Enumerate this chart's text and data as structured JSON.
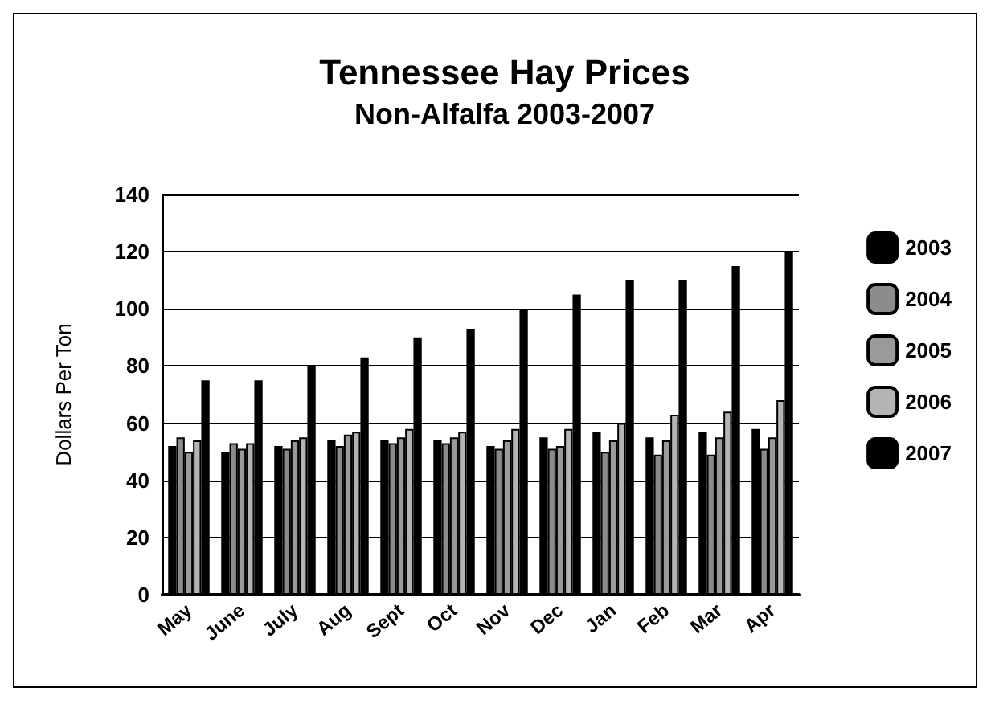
{
  "chart_data": {
    "type": "bar",
    "title": "Tennessee Hay Prices",
    "subtitle": "Non-Alfalfa 2003-2007",
    "ylabel": "Dollars Per Ton",
    "categories": [
      "May",
      "June",
      "July",
      "Aug",
      "Sept",
      "Oct",
      "Nov",
      "Dec",
      "Jan",
      "Feb",
      "Mar",
      "Apr"
    ],
    "series": [
      {
        "name": "2003",
        "color": "#000000",
        "values": [
          52,
          50,
          52,
          54,
          54,
          54,
          52,
          55,
          57,
          55,
          57,
          58
        ]
      },
      {
        "name": "2004",
        "color": "#8c8c8c",
        "values": [
          55,
          53,
          51,
          52,
          53,
          53,
          51,
          51,
          50,
          49,
          49,
          51
        ]
      },
      {
        "name": "2005",
        "color": "#9a9a9a",
        "values": [
          50,
          51,
          54,
          56,
          55,
          55,
          54,
          52,
          54,
          54,
          55,
          55
        ]
      },
      {
        "name": "2006",
        "color": "#b4b4b4",
        "values": [
          54,
          53,
          55,
          57,
          58,
          57,
          58,
          58,
          60,
          63,
          64,
          68
        ]
      },
      {
        "name": "2007",
        "color": "#000000",
        "values": [
          75,
          75,
          80,
          83,
          90,
          93,
          100,
          105,
          110,
          110,
          115,
          120
        ]
      }
    ],
    "ylim": [
      0,
      140
    ],
    "yticks": [
      0,
      20,
      40,
      60,
      80,
      100,
      120,
      140
    ],
    "grid": "y",
    "legend": "right"
  }
}
